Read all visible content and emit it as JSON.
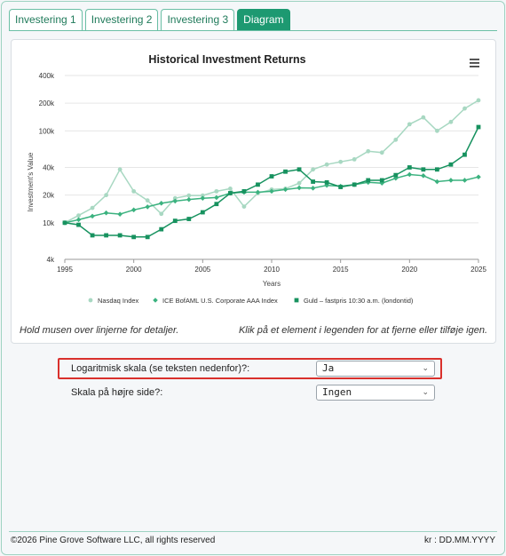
{
  "tabs": [
    {
      "label": "Investering 1",
      "active": false
    },
    {
      "label": "Investering 2",
      "active": false
    },
    {
      "label": "Investering 3",
      "active": false
    },
    {
      "label": "Diagram",
      "active": true
    }
  ],
  "chart_data": {
    "type": "line",
    "title": "Historical Investment Returns",
    "xlabel": "Years",
    "ylabel": "Investment's Value",
    "yscale": "log",
    "ylim": [
      4000,
      400000
    ],
    "xlim": [
      1995,
      2025
    ],
    "x_ticks": [
      1995,
      2000,
      2005,
      2010,
      2015,
      2020,
      2025
    ],
    "y_ticks": [
      {
        "value": 4000,
        "label": "4k"
      },
      {
        "value": 10000,
        "label": "10k"
      },
      {
        "value": 20000,
        "label": "20k"
      },
      {
        "value": 40000,
        "label": "40k"
      },
      {
        "value": 100000,
        "label": "100k"
      },
      {
        "value": 200000,
        "label": "200k"
      },
      {
        "value": 400000,
        "label": "400k"
      }
    ],
    "grid": "horizontal",
    "legend": "bottom",
    "x": [
      1995,
      1996,
      1997,
      1998,
      1999,
      2000,
      2001,
      2002,
      2003,
      2004,
      2005,
      2006,
      2007,
      2008,
      2009,
      2010,
      2011,
      2012,
      2013,
      2014,
      2015,
      2016,
      2017,
      2018,
      2019,
      2020,
      2021,
      2022,
      2023,
      2024,
      2025
    ],
    "series": [
      {
        "name": "Nasdaq Index",
        "color": "#a8d8c2",
        "marker": "circle",
        "values": [
          10000,
          12000,
          14500,
          20000,
          38000,
          22000,
          17500,
          12500,
          18500,
          19800,
          19800,
          22000,
          23500,
          15000,
          21000,
          23000,
          23500,
          27000,
          38000,
          43000,
          46000,
          49000,
          60000,
          58000,
          80000,
          118000,
          140000,
          100000,
          125000,
          175000,
          215000
        ]
      },
      {
        "name": "ICE BofAML U.S. Corporate AAA Index",
        "color": "#3bb27f",
        "marker": "diamond",
        "values": [
          10000,
          10800,
          11800,
          12800,
          12400,
          13800,
          14900,
          16300,
          17200,
          17900,
          18500,
          18800,
          21000,
          21500,
          21500,
          22000,
          23000,
          24000,
          23800,
          25500,
          25000,
          26000,
          27500,
          27000,
          30500,
          33500,
          32500,
          28000,
          29000,
          29000,
          31500
        ]
      },
      {
        "name": "Guld – fastpris 10:30 a.m. (londontid)",
        "color": "#17925f",
        "marker": "square",
        "values": [
          10000,
          9500,
          7300,
          7300,
          7300,
          7000,
          7000,
          8500,
          10500,
          11000,
          13000,
          16000,
          21000,
          22000,
          26000,
          32000,
          36000,
          38000,
          28000,
          27500,
          24500,
          26000,
          29000,
          29000,
          33000,
          40000,
          38000,
          38000,
          43000,
          55000,
          110000
        ]
      }
    ]
  },
  "hints": {
    "left": "Hold musen over linjerne for detaljer.",
    "right": "Klik på et element i legenden for at fjerne eller tilføje igen."
  },
  "settings": {
    "log_scale": {
      "label": "Logaritmisk skala (se teksten nedenfor)?:",
      "value": "Ja"
    },
    "right_scale": {
      "label": "Skala på højre side?:",
      "value": "Ingen"
    }
  },
  "menu_icon": "hamburger-icon",
  "highlight_color": "#d9302c",
  "footer": {
    "copyright": "©2026 Pine Grove Software LLC, all rights reserved",
    "date_format": "kr : DD.MM.YYYY"
  }
}
